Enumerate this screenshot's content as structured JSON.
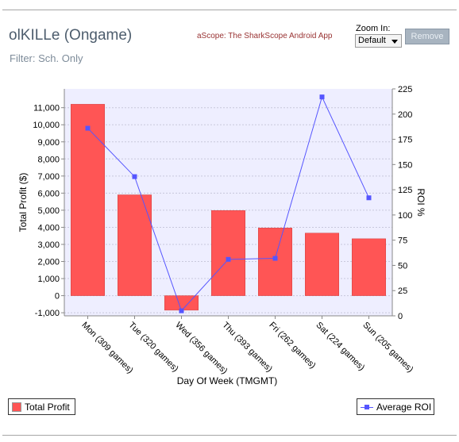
{
  "header": {
    "title": "olKILLe (Ongame)",
    "filter": "Filter: Sch. Only",
    "promo": "aScope: The SharkScope Android App",
    "zoom_label": "Zoom In:",
    "zoom_value": "Default",
    "remove_label": "Remove"
  },
  "colors": {
    "bar": "#ff5555",
    "line": "#5555ff",
    "plot_bg": "#eeeeff"
  },
  "chart_data": {
    "type": "bar",
    "title": "",
    "xlabel": "Day Of Week (TMGMT)",
    "ylabel": "Total Profit ($)",
    "y2label": "ROI %",
    "categories": [
      "Mon (309 games)",
      "Tue (320 games)",
      "Wed (356 games)",
      "Thu (393 games)",
      "Fri (262 games)",
      "Sat (224 games)",
      "Sun (205 games)"
    ],
    "series": [
      {
        "name": "Total Profit",
        "type": "bar",
        "axis": "left",
        "values": [
          11200,
          5900,
          -850,
          4980,
          3960,
          3660,
          3330
        ]
      },
      {
        "name": "Average ROI",
        "type": "line",
        "axis": "right",
        "values": [
          186,
          138,
          5,
          56,
          57,
          217,
          117
        ]
      }
    ],
    "ylim": [
      -1180,
      12100
    ],
    "y_ticks": [
      -1000,
      0,
      1000,
      2000,
      3000,
      4000,
      5000,
      6000,
      7000,
      8000,
      9000,
      10000,
      11000
    ],
    "y_tick_labels": [
      "-1,000",
      "0",
      "1,000",
      "2,000",
      "3,000",
      "4,000",
      "5,000",
      "6,000",
      "7,000",
      "8,000",
      "9,000",
      "10,000",
      "11,000"
    ],
    "y2lim": [
      0,
      225
    ],
    "y2_ticks": [
      0,
      25,
      50,
      75,
      100,
      125,
      150,
      175,
      200,
      225
    ],
    "grid": true,
    "legend": [
      "bottom-left",
      "bottom-right"
    ]
  }
}
